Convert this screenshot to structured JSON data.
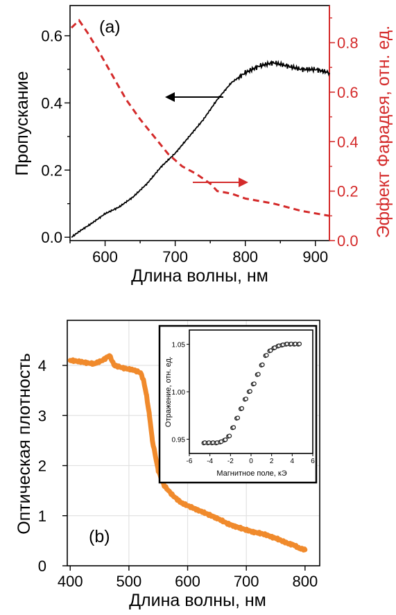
{
  "chart_data": [
    {
      "panel_label": "(a)",
      "type": "line",
      "xlabel": "Длина волны, нм",
      "xlim": [
        550,
        920
      ],
      "xticks": [
        "600",
        "700",
        "800",
        "900"
      ],
      "left_axis": {
        "label": "Пропускание",
        "ylim": [
          -0.01,
          0.69
        ],
        "ticks": [
          "0.0",
          "0.2",
          "0.4",
          "0.6"
        ]
      },
      "right_axis": {
        "label": "Эффект Фарадея, отн. ед.",
        "ylim": [
          0,
          0.95
        ],
        "ticks": [
          "0.0",
          "0.2",
          "0.4",
          "0.6",
          "0.8"
        ],
        "color": "#d42a2a"
      },
      "series": [
        {
          "axis": "left",
          "style": "solid",
          "color": "#000000",
          "x": [
            552,
            565,
            580,
            600,
            620,
            640,
            660,
            680,
            700,
            720,
            740,
            760,
            780,
            800,
            820,
            840,
            860,
            880,
            900,
            920
          ],
          "y": [
            0.0,
            0.02,
            0.04,
            0.07,
            0.09,
            0.12,
            0.16,
            0.21,
            0.25,
            0.3,
            0.35,
            0.41,
            0.46,
            0.49,
            0.51,
            0.52,
            0.51,
            0.5,
            0.5,
            0.49
          ]
        },
        {
          "axis": "right",
          "style": "dashed",
          "color": "#d42a2a",
          "x": [
            552,
            563,
            575,
            590,
            610,
            630,
            650,
            670,
            690,
            710,
            730,
            750,
            760,
            780,
            800,
            840,
            880,
            920
          ],
          "y": [
            0.86,
            0.89,
            0.84,
            0.77,
            0.67,
            0.57,
            0.49,
            0.42,
            0.35,
            0.3,
            0.27,
            0.23,
            0.2,
            0.19,
            0.17,
            0.15,
            0.12,
            0.1
          ]
        }
      ]
    },
    {
      "panel_label": "(b)",
      "type": "line",
      "xlabel": "Длина волны, нм",
      "ylabel": "Оптическая плотность",
      "xlim": [
        395,
        825
      ],
      "ylim": [
        0,
        4.9
      ],
      "xticks": [
        "400",
        "500",
        "600",
        "700",
        "800"
      ],
      "yticks": [
        "0",
        "1",
        "2",
        "3",
        "4"
      ],
      "grid": true,
      "series": [
        {
          "color": "#f08a2c",
          "x": [
            400,
            420,
            440,
            455,
            467,
            475,
            490,
            510,
            520,
            525,
            530,
            535,
            540,
            545,
            550,
            560,
            575,
            590,
            610,
            630,
            650,
            670,
            690,
            710,
            730,
            750,
            760,
            770,
            780,
            790,
            800
          ],
          "y": [
            4.1,
            4.07,
            4.03,
            4.1,
            4.2,
            4.0,
            3.95,
            3.9,
            3.85,
            3.7,
            3.4,
            3.0,
            2.5,
            2.2,
            1.9,
            1.6,
            1.4,
            1.25,
            1.15,
            1.05,
            0.95,
            0.83,
            0.75,
            0.68,
            0.63,
            0.55,
            0.5,
            0.45,
            0.42,
            0.35,
            0.32
          ]
        }
      ],
      "inset": {
        "type": "scatter",
        "xlabel": "Магнитное поле, кЭ",
        "ylabel": "Отражение, отн. ед.",
        "xlim": [
          -6,
          6
        ],
        "ylim": [
          0.935,
          1.065
        ],
        "xticks": [
          "-6",
          "-4",
          "-2",
          "0",
          "2",
          "4",
          "6"
        ],
        "yticks": [
          "0.95",
          "1.00",
          "1.05"
        ],
        "x": [
          -4.6,
          -4.2,
          -3.8,
          -3.4,
          -3.0,
          -2.6,
          -2.2,
          -1.8,
          -1.4,
          -1.0,
          -0.6,
          -0.2,
          0.2,
          0.6,
          1.0,
          1.4,
          1.8,
          2.2,
          2.6,
          3.0,
          3.4,
          3.8,
          4.2,
          4.6
        ],
        "y": [
          0.946,
          0.946,
          0.946,
          0.946,
          0.947,
          0.949,
          0.953,
          0.962,
          0.972,
          0.982,
          0.992,
          1.0,
          1.008,
          1.018,
          1.028,
          1.038,
          1.043,
          1.046,
          1.048,
          1.049,
          1.05,
          1.05,
          1.05,
          1.05
        ]
      }
    }
  ]
}
